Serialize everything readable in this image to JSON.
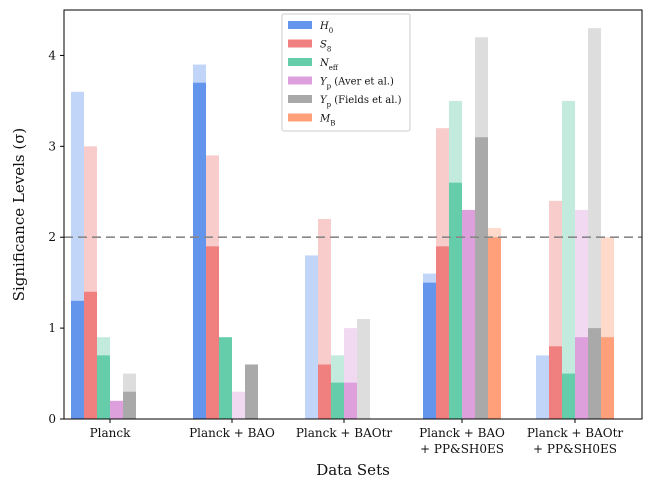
{
  "chart_data": {
    "type": "bar",
    "title": "",
    "xlabel": "Data Sets",
    "ylabel": "Significance Levels (σ)",
    "ylim": [
      0,
      4.5
    ],
    "yticks": [
      "0",
      "1",
      "2",
      "3",
      "4"
    ],
    "reference_line": 2,
    "categories": [
      [
        "Planck"
      ],
      [
        "Planck + BAO"
      ],
      [
        "Planck + BAOtr"
      ],
      [
        "Planck + BAO",
        "+ PP&SH0ES"
      ],
      [
        "Planck + BAOtr",
        "+ PP&SH0ES"
      ]
    ],
    "legend_position": "top-center",
    "series": [
      {
        "name": "H₀",
        "label_main": "H",
        "label_sub": "0",
        "color": "#6495ED",
        "values": [
          1.3,
          3.7,
          null,
          1.5,
          null
        ],
        "light_values": [
          3.6,
          3.9,
          1.8,
          1.6,
          0.7
        ]
      },
      {
        "name": "S₈",
        "label_main": "S",
        "label_sub": "8",
        "color": "#F08080",
        "values": [
          1.4,
          1.9,
          0.6,
          1.9,
          0.8
        ],
        "light_values": [
          3.0,
          2.9,
          2.2,
          3.2,
          2.4
        ]
      },
      {
        "name": "N_eff",
        "label_main": "N",
        "label_sub": "eff",
        "color": "#66CDAA",
        "values": [
          0.7,
          0.9,
          0.4,
          2.6,
          0.5
        ],
        "light_values": [
          0.9,
          null,
          0.7,
          3.5,
          3.5
        ]
      },
      {
        "name": "Y_p (Aver et al.)",
        "label_main": "Y",
        "label_sub": "p",
        "label_suffix": " (Aver et al.)",
        "color": "#DDA0DD",
        "values": [
          0.2,
          null,
          0.4,
          2.3,
          0.9
        ],
        "light_values": [
          null,
          0.3,
          1.0,
          2.3,
          2.3
        ]
      },
      {
        "name": "Y_p (Fields et al.)",
        "label_main": "Y",
        "label_sub": "p",
        "label_suffix": " (Fields et al.)",
        "color": "#A9A9A9",
        "values": [
          0.3,
          0.6,
          null,
          3.1,
          1.0
        ],
        "light_values": [
          0.5,
          null,
          1.1,
          4.2,
          4.3
        ]
      },
      {
        "name": "M_B",
        "label_main": "M",
        "label_sub": "B",
        "color": "#FFA07A",
        "values": [
          null,
          null,
          null,
          2.0,
          0.9
        ],
        "light_values": [
          null,
          null,
          null,
          2.1,
          2.0
        ]
      }
    ]
  }
}
